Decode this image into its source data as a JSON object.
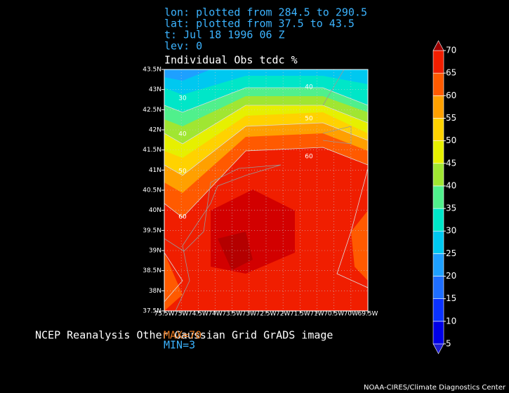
{
  "header": {
    "lines": [
      "lon: plotted from 284.5 to 290.5",
      "lat: plotted from 37.5 to 43.5",
      "t: Jul 18 1996 06 Z",
      "lev: 0"
    ]
  },
  "title": "Individual Obs tcdc %",
  "x_axis": {
    "lim": [
      -75.5,
      -69.5
    ],
    "ticks": [
      {
        "value": -75.5,
        "label": "75.5W"
      },
      {
        "value": -75,
        "label": "75W"
      },
      {
        "value": -74.5,
        "label": "74.5W"
      },
      {
        "value": -74,
        "label": "74W"
      },
      {
        "value": -73.5,
        "label": "73.5W"
      },
      {
        "value": -73,
        "label": "73W"
      },
      {
        "value": -72.5,
        "label": "72.5W"
      },
      {
        "value": -72,
        "label": "72W"
      },
      {
        "value": -71.5,
        "label": "71.5W"
      },
      {
        "value": -71,
        "label": "71W"
      },
      {
        "value": -70.5,
        "label": "70.5W"
      },
      {
        "value": -70,
        "label": "70W"
      },
      {
        "value": -69.5,
        "label": "69.5W"
      }
    ]
  },
  "y_axis": {
    "lim": [
      37.5,
      43.5
    ],
    "ticks": [
      {
        "value": 37.5,
        "label": "37.5N"
      },
      {
        "value": 38,
        "label": "38N"
      },
      {
        "value": 38.5,
        "label": "38.5N"
      },
      {
        "value": 39,
        "label": "39N"
      },
      {
        "value": 39.5,
        "label": "39.5N"
      },
      {
        "value": 40,
        "label": "40N"
      },
      {
        "value": 40.5,
        "label": "40.5N"
      },
      {
        "value": 41,
        "label": "41N"
      },
      {
        "value": 41.5,
        "label": "41.5N"
      },
      {
        "value": 42,
        "label": "42N"
      },
      {
        "value": 42.5,
        "label": "42.5N"
      },
      {
        "value": 43,
        "label": "43N"
      },
      {
        "value": 43.5,
        "label": "43.5N"
      }
    ]
  },
  "colorbar": {
    "levels": [
      5,
      10,
      15,
      20,
      25,
      30,
      35,
      40,
      45,
      50,
      55,
      60,
      65,
      70
    ],
    "colors": [
      "#1e1ed2",
      "#0000e6",
      "#0a32ff",
      "#1e6eff",
      "#1ea0ff",
      "#00c8f0",
      "#00e6c8",
      "#50f08c",
      "#a0e632",
      "#e6f000",
      "#ffd200",
      "#ffa000",
      "#ff5a00",
      "#f01e00",
      "#c80000",
      "#a00000"
    ]
  },
  "contour_labels": [
    30,
    40,
    50,
    60,
    40,
    50,
    60
  ],
  "footer": "NCEP Reanalysis Other Gaussian Grid GrADS image",
  "max_label": "MAX=70",
  "min_label": "MIN=3",
  "credit": "NOAA-CIRES/Climate Diagnostics Center"
}
